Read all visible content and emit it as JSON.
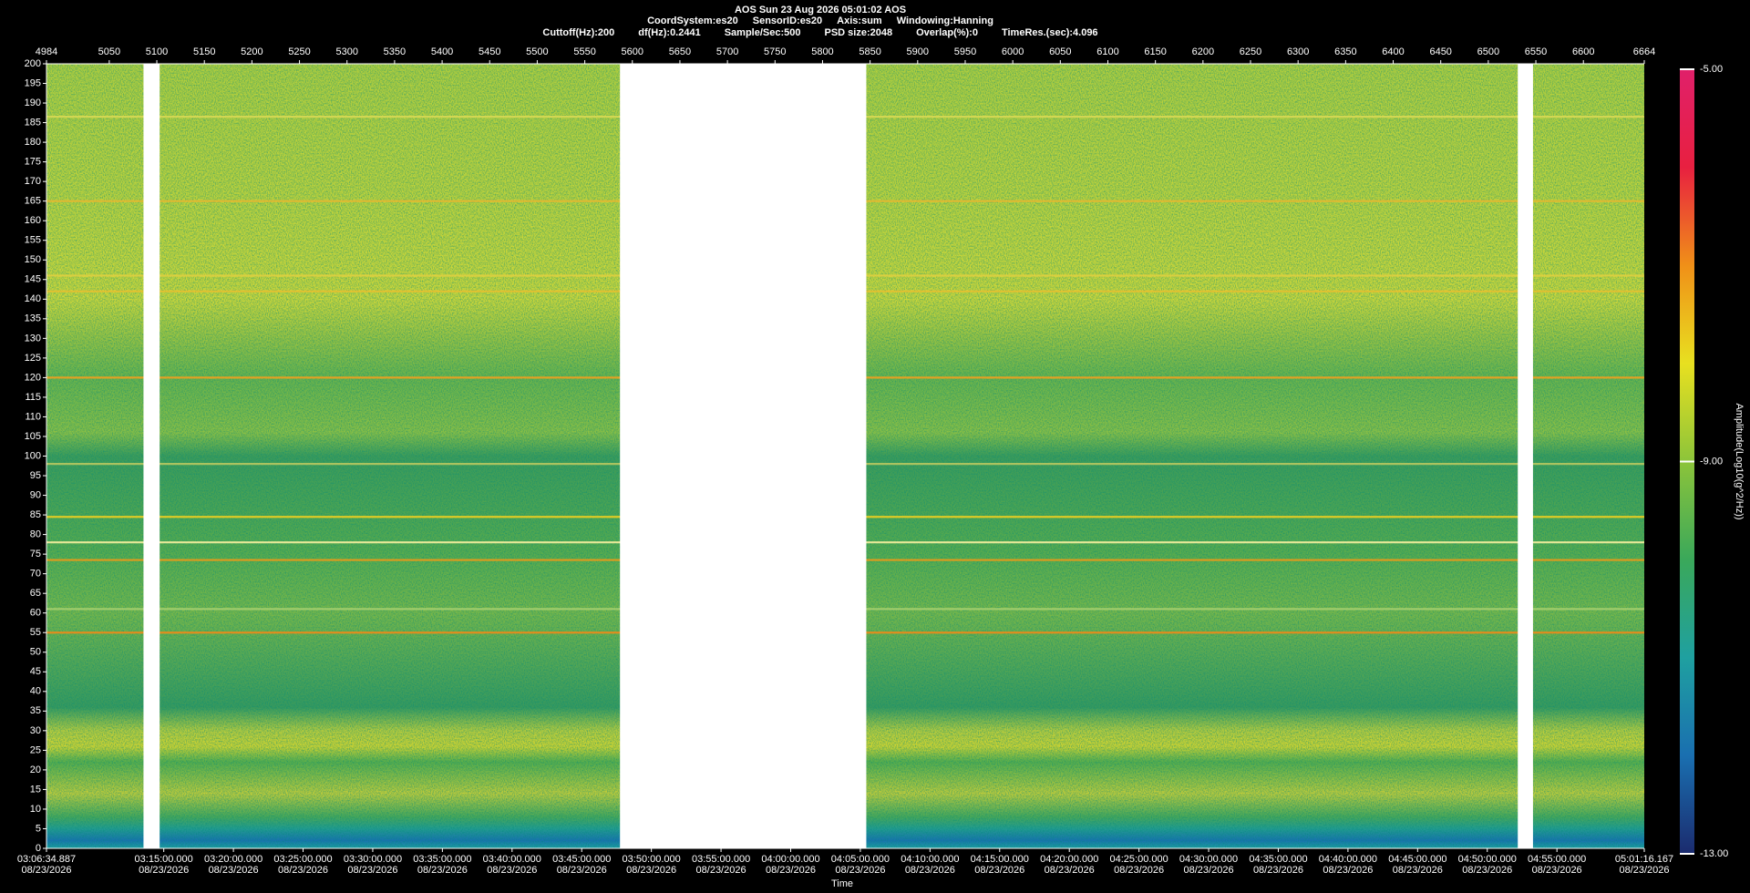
{
  "chart_data": {
    "type": "spectrogram",
    "header": {
      "line1": "AOS  Sun 23 Aug 2026 05:01:02  AOS",
      "line2": [
        "CoordSystem:es20",
        "SensorID:es20",
        "Axis:sum",
        "Windowing:Hanning"
      ],
      "line3": [
        "Cuttoff(Hz):200",
        "df(Hz):0.2441",
        "Sample/Sec:500",
        "PSD size:2048",
        "Overlap(%):0",
        "TimeRes.(sec):4.096"
      ]
    },
    "xlabel": "Time",
    "xdate": "08/23/2026",
    "xlim": [
      11194.887,
      18076.167
    ],
    "xticks": [
      {
        "value": 11194.887,
        "label": "03:06:34.887"
      },
      {
        "value": 11700,
        "label": "03:15:00.000"
      },
      {
        "value": 12000,
        "label": "03:20:00.000"
      },
      {
        "value": 12300,
        "label": "03:25:00.000"
      },
      {
        "value": 12600,
        "label": "03:30:00.000"
      },
      {
        "value": 12900,
        "label": "03:35:00.000"
      },
      {
        "value": 13200,
        "label": "03:40:00.000"
      },
      {
        "value": 13500,
        "label": "03:45:00.000"
      },
      {
        "value": 13800,
        "label": "03:50:00.000"
      },
      {
        "value": 14100,
        "label": "03:55:00.000"
      },
      {
        "value": 14400,
        "label": "04:00:00.000"
      },
      {
        "value": 14700,
        "label": "04:05:00.000"
      },
      {
        "value": 15000,
        "label": "04:10:00.000"
      },
      {
        "value": 15300,
        "label": "04:15:00.000"
      },
      {
        "value": 15600,
        "label": "04:20:00.000"
      },
      {
        "value": 15900,
        "label": "04:25:00.000"
      },
      {
        "value": 16200,
        "label": "04:30:00.000"
      },
      {
        "value": 16500,
        "label": "04:35:00.000"
      },
      {
        "value": 16800,
        "label": "04:40:00.000"
      },
      {
        "value": 17100,
        "label": "04:45:00.000"
      },
      {
        "value": 17400,
        "label": "04:50:00.000"
      },
      {
        "value": 17700,
        "label": "04:55:00.000"
      },
      {
        "value": 18076.167,
        "label": "05:01:16.167"
      }
    ],
    "x2lim": [
      4984,
      6664
    ],
    "x2ticks": [
      4984,
      5050,
      5100,
      5150,
      5200,
      5250,
      5300,
      5350,
      5400,
      5450,
      5500,
      5550,
      5600,
      5650,
      5700,
      5750,
      5800,
      5850,
      5900,
      5950,
      6000,
      6050,
      6100,
      6150,
      6200,
      6250,
      6300,
      6350,
      6400,
      6450,
      6500,
      6550,
      6600,
      6664
    ],
    "ylim": [
      0,
      200
    ],
    "yticks": [
      0,
      5,
      10,
      15,
      20,
      25,
      30,
      35,
      40,
      45,
      50,
      55,
      60,
      65,
      70,
      75,
      80,
      85,
      90,
      95,
      100,
      105,
      110,
      115,
      120,
      125,
      130,
      135,
      140,
      145,
      150,
      155,
      160,
      165,
      170,
      175,
      180,
      185,
      190,
      195,
      200
    ],
    "gaps": [
      [
        5086,
        5103
      ],
      [
        5587,
        5846
      ],
      [
        6531,
        6547
      ]
    ],
    "tones": [
      {
        "frequency": 186.5,
        "color": "#d9d955"
      },
      {
        "frequency": 165,
        "color": "#e8b830"
      },
      {
        "frequency": 146,
        "color": "#e0d040"
      },
      {
        "frequency": 142,
        "color": "#e8c030"
      },
      {
        "frequency": 120,
        "color": "#f0a020"
      },
      {
        "frequency": 98,
        "color": "#b8c860"
      },
      {
        "frequency": 84.5,
        "color": "#f0d020"
      },
      {
        "frequency": 78,
        "color": "#f8f0a0"
      },
      {
        "frequency": 73.5,
        "color": "#f09a18"
      },
      {
        "frequency": 61,
        "color": "#a8d070"
      },
      {
        "frequency": 55,
        "color": "#f08a18"
      }
    ],
    "colorbar": {
      "label": "Amplitude(Log10(g^2/Hz))",
      "clim": [
        -13,
        -5
      ],
      "cticks": [
        {
          "value": -5,
          "label": "-5.00"
        },
        {
          "value": -9,
          "label": "-9.00"
        },
        {
          "value": -13,
          "label": "-13.00"
        }
      ],
      "colors": [
        "#1b2b6e",
        "#1a6fb0",
        "#1fa0a0",
        "#3aa85a",
        "#8cc43a",
        "#e8e020",
        "#f09018",
        "#e82040",
        "#e0206a"
      ]
    }
  }
}
